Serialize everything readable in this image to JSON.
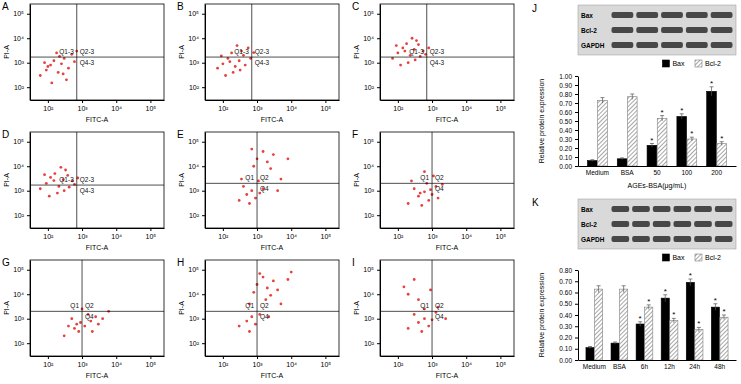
{
  "chart_data": [
    {
      "type": "scatter",
      "title": "A",
      "x_label": "FITC-A",
      "y_label": "PI-A",
      "log": true,
      "xlim": [
        30,
        250000
      ],
      "ylim": [
        30,
        250000
      ],
      "xticks": [
        {
          "value": 100,
          "label": "10²"
        },
        {
          "value": 1000,
          "label": "10³"
        },
        {
          "value": 10000,
          "label": "10⁴"
        },
        {
          "value": 100000,
          "label": "10⁵"
        }
      ],
      "yticks": [
        {
          "value": 100,
          "label": "10²"
        },
        {
          "value": 1000,
          "label": "10³"
        },
        {
          "value": 10000,
          "label": "10⁴"
        },
        {
          "value": 100000,
          "label": "10⁵"
        }
      ],
      "gate": {
        "x": 700,
        "y": 1700
      },
      "quadrant_labels": [
        "Q1-3",
        "Q2-3",
        "Q4-3"
      ],
      "color": "#e0201b",
      "marker": "dot",
      "x": [
        60,
        90,
        120,
        150,
        200,
        250,
        300,
        80,
        400,
        500,
        180,
        350,
        130,
        600,
        220,
        700,
        100,
        280
      ],
      "y": [
        300,
        500,
        800,
        1200,
        400,
        900,
        1500,
        1000,
        600,
        2200,
        2500,
        200,
        150,
        1100,
        1800,
        3000,
        700,
        350
      ]
    },
    {
      "type": "scatter",
      "title": "B",
      "x_label": "FITC-A",
      "y_label": "PI-A",
      "log": true,
      "xlim": [
        30,
        250000
      ],
      "ylim": [
        30,
        250000
      ],
      "xticks": [
        {
          "value": 100,
          "label": "10²"
        },
        {
          "value": 1000,
          "label": "10³"
        },
        {
          "value": 10000,
          "label": "10⁴"
        },
        {
          "value": 100000,
          "label": "10⁵"
        }
      ],
      "yticks": [
        {
          "value": 100,
          "label": "10²"
        },
        {
          "value": 1000,
          "label": "10³"
        },
        {
          "value": 10000,
          "label": "10⁴"
        },
        {
          "value": 100000,
          "label": "10⁵"
        }
      ],
      "gate": {
        "x": 700,
        "y": 1700
      },
      "quadrant_labels": [
        "Q1-3",
        "Q2-3",
        "Q4-3"
      ],
      "color": "#e0201b",
      "marker": "dot",
      "x": [
        70,
        100,
        140,
        180,
        230,
        300,
        350,
        90,
        450,
        550,
        200,
        400,
        120,
        650,
        260,
        800,
        160,
        320
      ],
      "y": [
        600,
        900,
        1500,
        2500,
        700,
        1200,
        3000,
        1900,
        800,
        4000,
        400,
        2000,
        300,
        1500,
        5000,
        2600,
        1100,
        500
      ]
    },
    {
      "type": "scatter",
      "title": "C",
      "x_label": "FITC-A",
      "y_label": "PI-A",
      "log": true,
      "xlim": [
        30,
        250000
      ],
      "ylim": [
        30,
        250000
      ],
      "xticks": [
        {
          "value": 100,
          "label": "10²"
        },
        {
          "value": 1000,
          "label": "10³"
        },
        {
          "value": 10000,
          "label": "10⁴"
        },
        {
          "value": 100000,
          "label": "10⁵"
        }
      ],
      "yticks": [
        {
          "value": 100,
          "label": "10²"
        },
        {
          "value": 1000,
          "label": "10³"
        },
        {
          "value": 10000,
          "label": "10⁴"
        },
        {
          "value": 100000,
          "label": "10⁵"
        }
      ],
      "gate": {
        "x": 700,
        "y": 1700
      },
      "quadrant_labels": [
        "Q1-3",
        "Q2-3",
        "Q4-3"
      ],
      "color": "#e0201b",
      "marker": "dot",
      "x": [
        70,
        100,
        140,
        180,
        230,
        300,
        350,
        90,
        450,
        550,
        200,
        400,
        120,
        650,
        260,
        800,
        160,
        320
      ],
      "y": [
        1500,
        2500,
        4000,
        6000,
        2000,
        3500,
        8000,
        5000,
        1800,
        3000,
        1000,
        5500,
        800,
        2200,
        10000,
        4000,
        3000,
        1300
      ]
    },
    {
      "type": "scatter",
      "title": "D",
      "x_label": "FITC-A",
      "y_label": "PI-A",
      "log": true,
      "xlim": [
        30,
        250000
      ],
      "ylim": [
        30,
        250000
      ],
      "xticks": [
        {
          "value": 100,
          "label": "10²"
        },
        {
          "value": 1000,
          "label": "10³"
        },
        {
          "value": 10000,
          "label": "10⁴"
        },
        {
          "value": 100000,
          "label": "10⁵"
        }
      ],
      "yticks": [
        {
          "value": 100,
          "label": "10²"
        },
        {
          "value": 1000,
          "label": "10³"
        },
        {
          "value": 10000,
          "label": "10⁴"
        },
        {
          "value": 100000,
          "label": "10⁵"
        }
      ],
      "gate": {
        "x": 700,
        "y": 1700
      },
      "quadrant_labels": [
        "Q1-3",
        "Q2-3",
        "Q4-3"
      ],
      "color": "#e0201b",
      "marker": "dot",
      "x": [
        60,
        90,
        120,
        160,
        210,
        280,
        330,
        80,
        420,
        520,
        190,
        380,
        110,
        600,
        240,
        750,
        150,
        300
      ],
      "y": [
        1200,
        2000,
        3500,
        5000,
        1500,
        2800,
        7000,
        4500,
        1400,
        2500,
        800,
        4200,
        600,
        1800,
        9000,
        3300,
        2600,
        1000
      ]
    },
    {
      "type": "scatter",
      "title": "E",
      "x_label": "FITC-A",
      "y_label": "PI-A",
      "log": true,
      "xlim": [
        30,
        250000
      ],
      "ylim": [
        30,
        250000
      ],
      "xticks": [
        {
          "value": 100,
          "label": "10²"
        },
        {
          "value": 1000,
          "label": "10³"
        },
        {
          "value": 10000,
          "label": "10⁴"
        },
        {
          "value": 100000,
          "label": "10⁵"
        }
      ],
      "yticks": [
        {
          "value": 100,
          "label": "10²"
        },
        {
          "value": 1000,
          "label": "10³"
        },
        {
          "value": 10000,
          "label": "10⁴"
        },
        {
          "value": 100000,
          "label": "10⁵"
        }
      ],
      "gate": {
        "x": 1000,
        "y": 2000
      },
      "quadrant_labels": [
        "Q1",
        "Q2",
        "Q4"
      ],
      "color": "#e0201b",
      "marker": "dot",
      "x": [
        300,
        500,
        700,
        900,
        400,
        1200,
        600,
        1500,
        800,
        1000,
        1500,
        2000,
        3000,
        700,
        2500,
        5000,
        4000,
        8000,
        350,
        1100
      ],
      "y": [
        400,
        700,
        1000,
        500,
        1500,
        800,
        300,
        1200,
        10000,
        20000,
        40000,
        15000,
        30000,
        50000,
        8000,
        3000,
        1000,
        20000,
        3000,
        2500
      ]
    },
    {
      "type": "scatter",
      "title": "F",
      "x_label": "FITC-A",
      "y_label": "PI-A",
      "log": true,
      "xlim": [
        30,
        250000
      ],
      "ylim": [
        30,
        250000
      ],
      "xticks": [
        {
          "value": 100,
          "label": "10²"
        },
        {
          "value": 1000,
          "label": "10³"
        },
        {
          "value": 10000,
          "label": "10⁴"
        },
        {
          "value": 100000,
          "label": "10⁵"
        }
      ],
      "yticks": [
        {
          "value": 100,
          "label": "10²"
        },
        {
          "value": 1000,
          "label": "10³"
        },
        {
          "value": 10000,
          "label": "10⁴"
        },
        {
          "value": 100000,
          "label": "10⁵"
        }
      ],
      "gate": {
        "x": 1000,
        "y": 2000
      },
      "quadrant_labels": [
        "Q1",
        "Q2",
        "Q4"
      ],
      "color": "#e0201b",
      "marker": "dot",
      "x": [
        200,
        400,
        600,
        800,
        300,
        1000,
        500,
        1300,
        700,
        900,
        450,
        1500,
        250,
        1100,
        2000,
        600
      ],
      "y": [
        300,
        600,
        900,
        400,
        1200,
        700,
        250,
        1500,
        2000,
        1100,
        800,
        500,
        2500,
        4000,
        1800,
        6000
      ]
    },
    {
      "type": "scatter",
      "title": "G",
      "x_label": "FITC-A",
      "y_label": "PI-A",
      "log": true,
      "xlim": [
        30,
        250000
      ],
      "ylim": [
        30,
        250000
      ],
      "xticks": [
        {
          "value": 100,
          "label": "10²"
        },
        {
          "value": 1000,
          "label": "10³"
        },
        {
          "value": 10000,
          "label": "10⁴"
        },
        {
          "value": 100000,
          "label": "10⁵"
        }
      ],
      "yticks": [
        {
          "value": 100,
          "label": "10²"
        },
        {
          "value": 1000,
          "label": "10³"
        },
        {
          "value": 10000,
          "label": "10⁴"
        },
        {
          "value": 100000,
          "label": "10⁵"
        }
      ],
      "gate": {
        "x": 1000,
        "y": 2000
      },
      "quadrant_labels": [
        "Q1",
        "Q2",
        "Q4"
      ],
      "color": "#e0201b",
      "marker": "dot",
      "x": [
        300,
        600,
        900,
        1200,
        500,
        1800,
        800,
        2500,
        1500,
        3000,
        700,
        4000,
        2000,
        1000,
        6000,
        400
      ],
      "y": [
        200,
        400,
        700,
        500,
        1000,
        800,
        300,
        1200,
        1500,
        600,
        600,
        1000,
        300,
        2500,
        2000,
        500
      ]
    },
    {
      "type": "scatter",
      "title": "H",
      "x_label": "FITC-A",
      "y_label": "PI-A",
      "log": true,
      "xlim": [
        30,
        250000
      ],
      "ylim": [
        30,
        250000
      ],
      "xticks": [
        {
          "value": 100,
          "label": "10²"
        },
        {
          "value": 1000,
          "label": "10³"
        },
        {
          "value": 10000,
          "label": "10⁴"
        },
        {
          "value": 100000,
          "label": "10⁵"
        }
      ],
      "yticks": [
        {
          "value": 100,
          "label": "10²"
        },
        {
          "value": 1000,
          "label": "10³"
        },
        {
          "value": 10000,
          "label": "10⁴"
        },
        {
          "value": 100000,
          "label": "10⁵"
        }
      ],
      "gate": {
        "x": 1000,
        "y": 2000
      },
      "quadrant_labels": [
        "Q1",
        "Q2",
        "Q4"
      ],
      "color": "#e0201b",
      "marker": "dot",
      "x": [
        300,
        500,
        700,
        900,
        1200,
        600,
        800,
        1000,
        1500,
        2000,
        3000,
        1200,
        2500,
        5000,
        4000,
        8000,
        1800,
        600,
        10000,
        2200
      ],
      "y": [
        500,
        800,
        1200,
        600,
        1500,
        300,
        12000,
        25000,
        50000,
        18000,
        35000,
        70000,
        9000,
        4000,
        15000,
        40000,
        6000,
        4000,
        80000,
        1200
      ]
    },
    {
      "type": "scatter",
      "title": "I",
      "x_label": "FITC-A",
      "y_label": "PI-A",
      "log": true,
      "xlim": [
        30,
        250000
      ],
      "ylim": [
        30,
        250000
      ],
      "xticks": [
        {
          "value": 100,
          "label": "10²"
        },
        {
          "value": 1000,
          "label": "10³"
        },
        {
          "value": 10000,
          "label": "10⁴"
        },
        {
          "value": 100000,
          "label": "10⁵"
        }
      ],
      "yticks": [
        {
          "value": 100,
          "label": "10²"
        },
        {
          "value": 1000,
          "label": "10³"
        },
        {
          "value": 10000,
          "label": "10⁴"
        },
        {
          "value": 100000,
          "label": "10⁵"
        }
      ],
      "gate": {
        "x": 1000,
        "y": 2000
      },
      "quadrant_labels": [
        "Q1",
        "Q2",
        "Q4"
      ],
      "color": "#e0201b",
      "marker": "dot",
      "x": [
        200,
        400,
        600,
        800,
        300,
        1000,
        500,
        1300,
        150,
        300,
        200,
        900,
        1500,
        600,
        2500,
        400
      ],
      "y": [
        400,
        700,
        1000,
        500,
        1500,
        900,
        300,
        1800,
        20000,
        40000,
        10000,
        15000,
        3000,
        2500,
        1000,
        6000
      ]
    },
    {
      "type": "bar",
      "title": "J",
      "x_label": "AGEs-BSA(μg/mL)",
      "y_label": "Relative protein expression",
      "categories": [
        "Medium",
        "BSA",
        "50",
        "100",
        "200"
      ],
      "ylim": [
        0,
        1
      ],
      "yticks": [
        {
          "value": 0,
          "label": "0.00"
        },
        {
          "value": 0.1,
          "label": "0.10"
        },
        {
          "value": 0.2,
          "label": "0.20"
        },
        {
          "value": 0.3,
          "label": "0.30"
        },
        {
          "value": 0.4,
          "label": "0.40"
        },
        {
          "value": 0.5,
          "label": "0.50"
        },
        {
          "value": 0.6,
          "label": "0.60"
        },
        {
          "value": 0.7,
          "label": "0.70"
        },
        {
          "value": 0.8,
          "label": "0.80"
        },
        {
          "value": 0.9,
          "label": "0.90"
        },
        {
          "value": 1,
          "label": "1.00"
        }
      ],
      "legend": "top-right",
      "grid": false,
      "blot_labels": [
        "Bax",
        "Bcl-2",
        "GAPDH"
      ],
      "series": [
        {
          "name": "Bax",
          "color": "#000000",
          "values": [
            0.06,
            0.08,
            0.23,
            0.55,
            0.83
          ],
          "errors": [
            0.01,
            0.01,
            0.02,
            0.03,
            0.05
          ]
        },
        {
          "name": "Bcl-2",
          "color": "#7f7f7f",
          "values": [
            0.73,
            0.77,
            0.53,
            0.3,
            0.25
          ],
          "errors": [
            0.03,
            0.03,
            0.03,
            0.02,
            0.02
          ]
        }
      ],
      "annotations": [
        {
          "text": "*",
          "series": 0,
          "index": 2
        },
        {
          "text": "*",
          "series": 0,
          "index": 3
        },
        {
          "text": "*",
          "series": 0,
          "index": 4
        },
        {
          "text": "*",
          "series": 1,
          "index": 2
        },
        {
          "text": "*",
          "series": 1,
          "index": 3
        },
        {
          "text": "*",
          "series": 1,
          "index": 4
        }
      ]
    },
    {
      "type": "bar",
      "title": "K",
      "y_label": "Relative protein expression",
      "categories": [
        "Medium",
        "BSA",
        "6h",
        "12h",
        "24h",
        "48h"
      ],
      "ylim": [
        0,
        0.8
      ],
      "yticks": [
        {
          "value": 0,
          "label": "0.00"
        },
        {
          "value": 0.1,
          "label": "0.10"
        },
        {
          "value": 0.2,
          "label": "0.20"
        },
        {
          "value": 0.3,
          "label": "0.30"
        },
        {
          "value": 0.4,
          "label": "0.40"
        },
        {
          "value": 0.5,
          "label": "0.50"
        },
        {
          "value": 0.6,
          "label": "0.60"
        },
        {
          "value": 0.7,
          "label": "0.70"
        },
        {
          "value": 0.8,
          "label": "0.80"
        }
      ],
      "legend": "top-right",
      "grid": false,
      "blot_labels": [
        "Bax",
        "Bcl-2",
        "GAPDH"
      ],
      "series": [
        {
          "name": "Bax",
          "color": "#000000",
          "values": [
            0.11,
            0.15,
            0.32,
            0.55,
            0.69,
            0.47
          ],
          "errors": [
            0.01,
            0.01,
            0.02,
            0.03,
            0.03,
            0.03
          ]
        },
        {
          "name": "Bcl-2",
          "color": "#7f7f7f",
          "values": [
            0.63,
            0.63,
            0.47,
            0.35,
            0.27,
            0.38
          ],
          "errors": [
            0.03,
            0.03,
            0.02,
            0.02,
            0.02,
            0.02
          ]
        }
      ],
      "annotations": [
        {
          "text": "*",
          "series": 0,
          "index": 2
        },
        {
          "text": "*",
          "series": 0,
          "index": 3
        },
        {
          "text": "*",
          "series": 0,
          "index": 4
        },
        {
          "text": "*",
          "series": 0,
          "index": 5
        },
        {
          "text": "*",
          "series": 1,
          "index": 2
        },
        {
          "text": "*",
          "series": 1,
          "index": 3
        },
        {
          "text": "*",
          "series": 1,
          "index": 4
        },
        {
          "text": "*",
          "series": 1,
          "index": 5
        }
      ]
    }
  ]
}
